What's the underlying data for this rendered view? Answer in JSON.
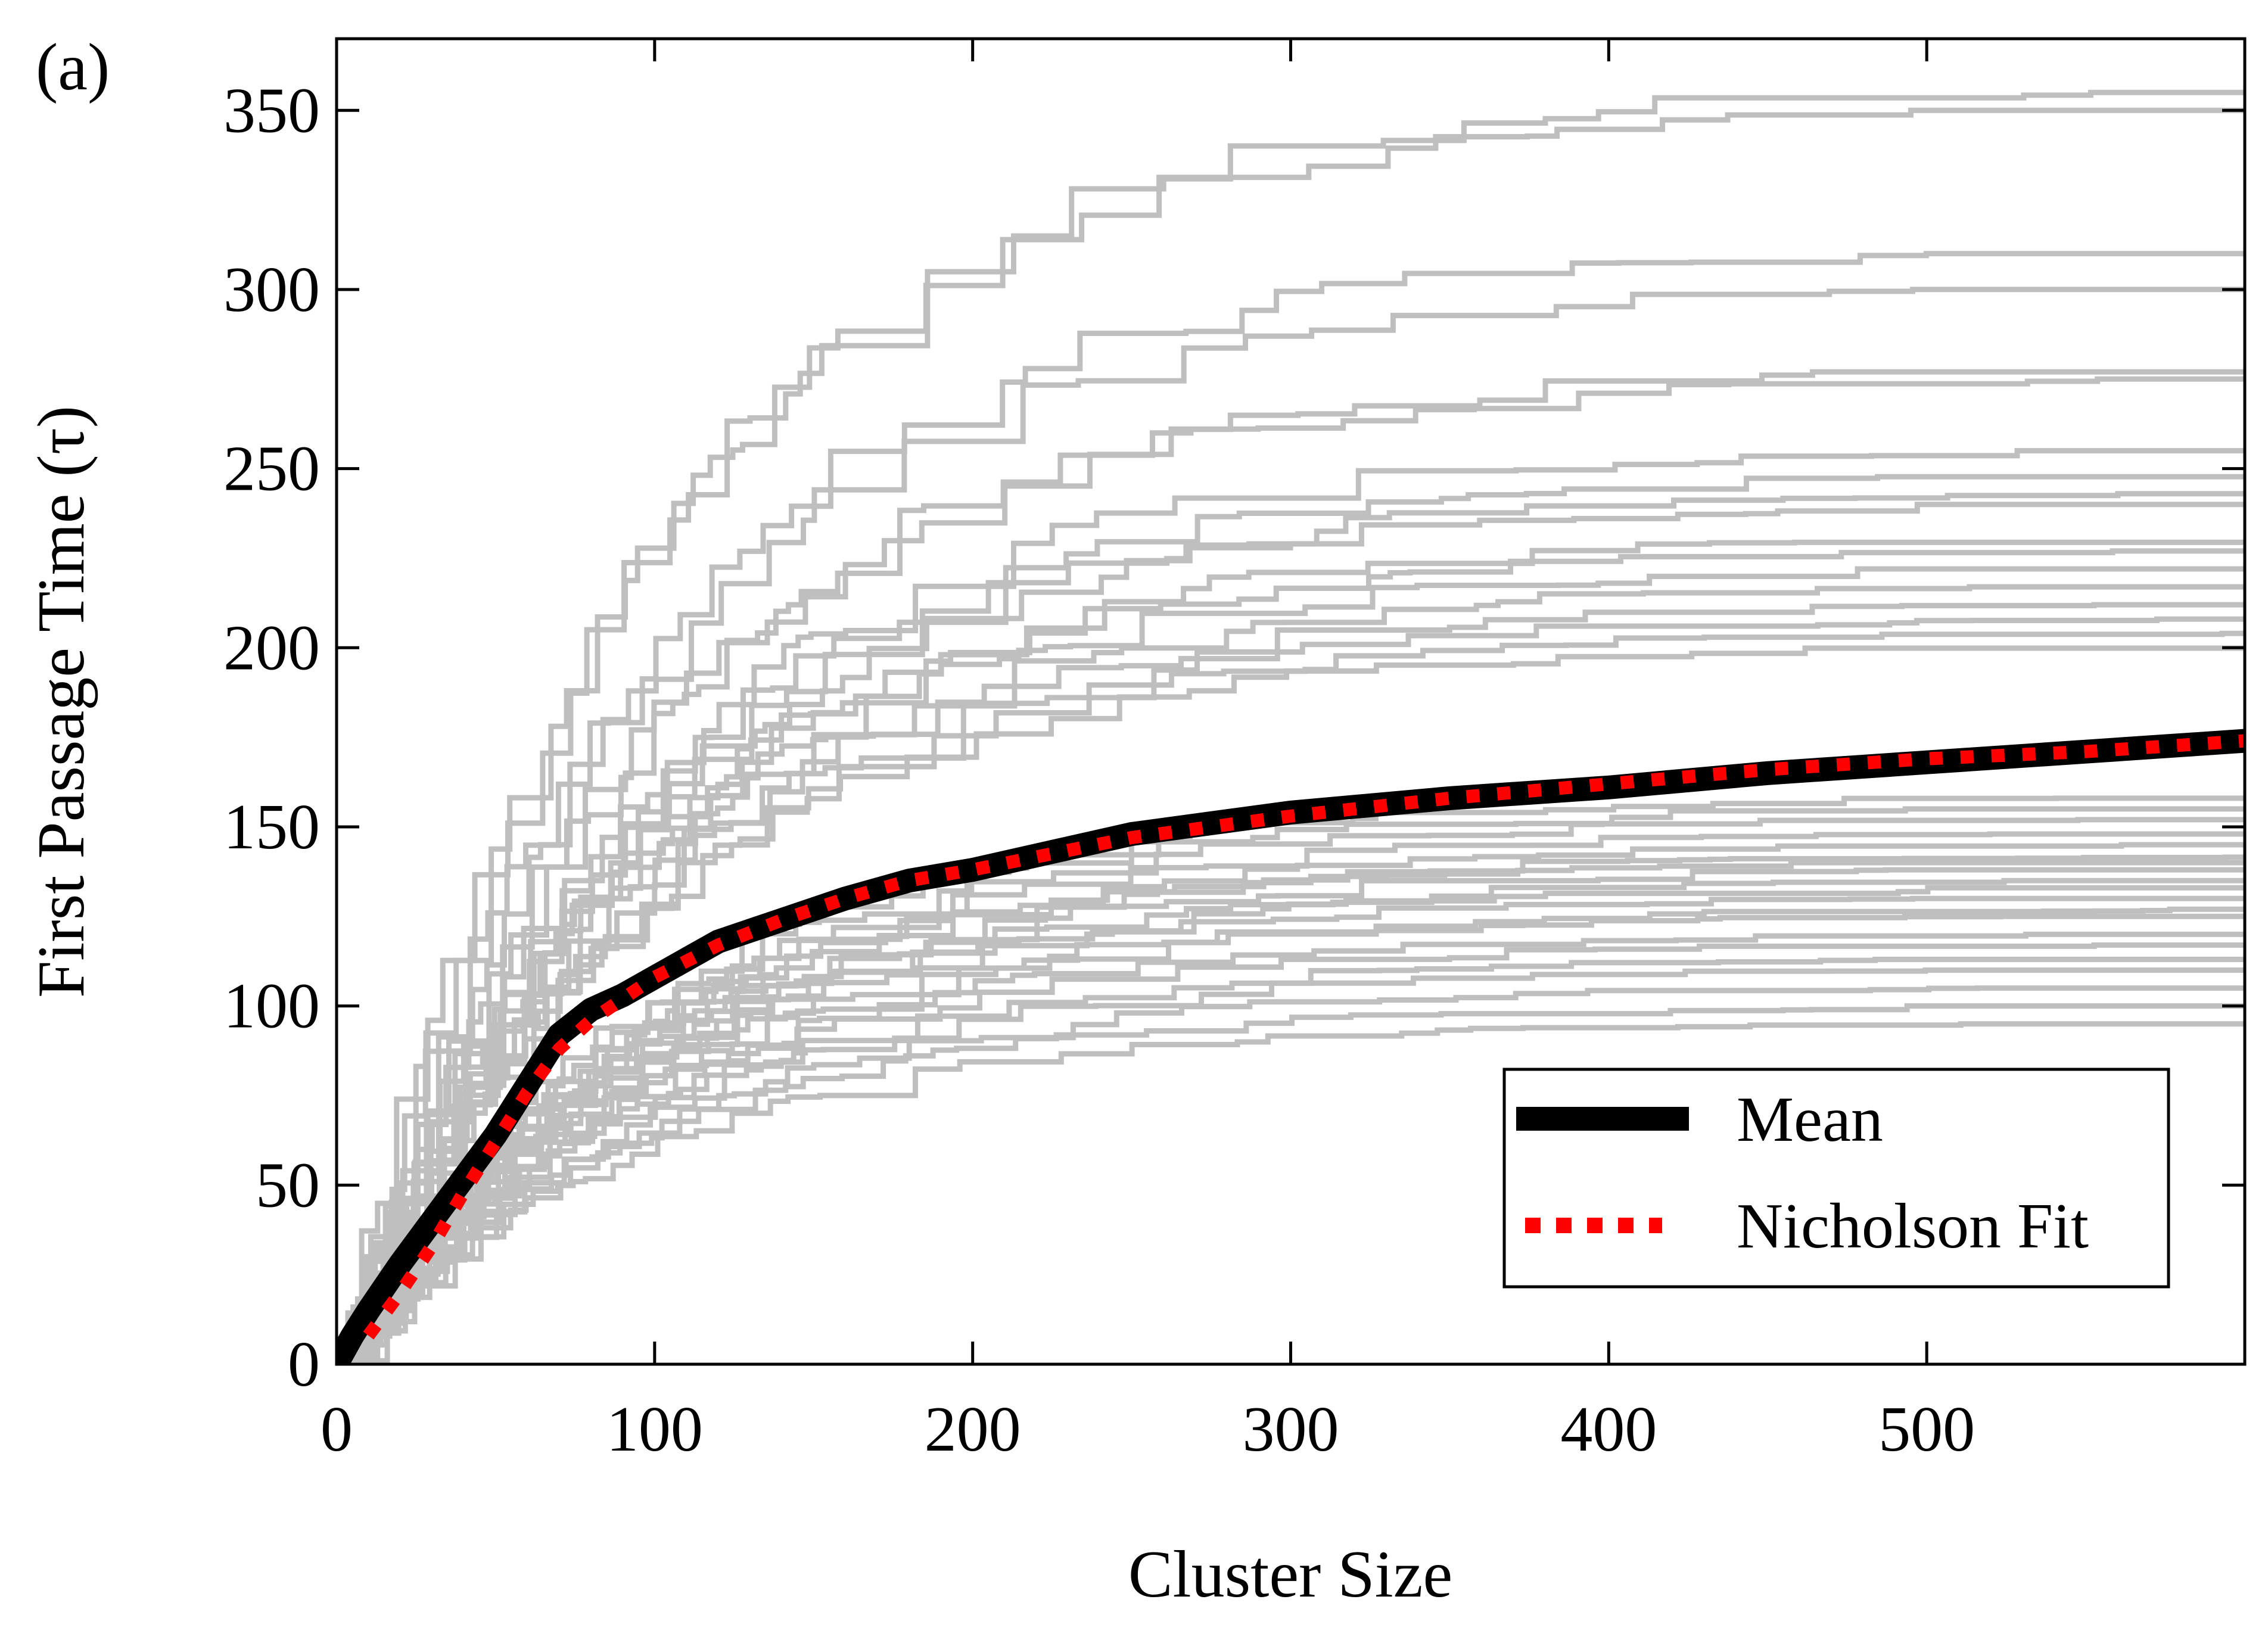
{
  "panel_label": "(a)",
  "colors": {
    "trajectory": "#bfbfbf",
    "mean": "#000000",
    "fit": "#ff0000",
    "axes": "#000000",
    "background": "#ffffff"
  },
  "chart_data": {
    "type": "line",
    "title": "",
    "xlabel": "Cluster Size",
    "ylabel": "First Passage Time (τ)",
    "xlim": [
      0,
      600
    ],
    "ylim": [
      0,
      370
    ],
    "xticks": [
      0,
      100,
      200,
      300,
      400,
      500
    ],
    "xtick_labels": [
      "0",
      "100",
      "200",
      "300",
      "400",
      "500"
    ],
    "yticks": [
      0,
      50,
      100,
      150,
      200,
      250,
      300,
      350
    ],
    "ytick_labels": [
      "0",
      "50",
      "100",
      "150",
      "200",
      "250",
      "300",
      "350"
    ],
    "grid": false,
    "legend": {
      "position": "bottom-right",
      "entries": [
        "Mean",
        "Nicholson Fit"
      ]
    },
    "trajectory_endpoints_at_600": [
      355,
      350,
      310,
      300,
      277,
      275,
      255,
      248,
      243,
      240,
      230,
      227,
      222,
      217,
      212,
      208,
      204,
      200,
      158,
      155,
      152,
      148,
      145,
      142,
      140,
      138,
      135,
      133,
      130,
      127,
      125,
      120,
      117,
      113,
      110,
      105,
      100,
      95
    ],
    "series": [
      {
        "name": "Mean",
        "style": "thick solid black",
        "x": [
          0,
          5,
          10,
          20,
          30,
          40,
          50,
          60,
          70,
          80,
          90,
          100,
          120,
          140,
          160,
          180,
          200,
          250,
          300,
          350,
          400,
          450,
          500,
          550,
          600
        ],
        "y": [
          0,
          8,
          15,
          28,
          40,
          52,
          64,
          78,
          92,
          99,
          103,
          108,
          118,
          124,
          130,
          135,
          138,
          148,
          154,
          158,
          161,
          165,
          168,
          171,
          174
        ]
      },
      {
        "name": "Nicholson Fit",
        "style": "dotted red",
        "x": [
          10,
          20,
          30,
          40,
          50,
          60,
          70,
          80,
          90,
          100,
          120,
          140,
          160,
          180,
          200,
          250,
          300,
          350,
          400,
          450,
          500,
          550,
          600
        ],
        "y": [
          8,
          20,
          33,
          48,
          62,
          76,
          88,
          96,
          102,
          108,
          117,
          124,
          130,
          135,
          138,
          147,
          153,
          158,
          162,
          166,
          169,
          171,
          174
        ]
      }
    ]
  }
}
